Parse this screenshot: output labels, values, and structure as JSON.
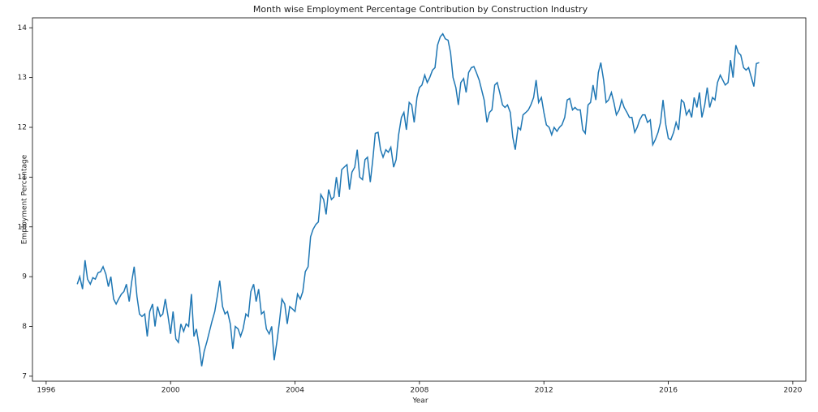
{
  "chart_data": {
    "type": "line",
    "title": "Month wise Employment Percentage Contribution by Construction Industry",
    "x_label": "Year",
    "y_label": "Employment Percentage",
    "color": "#1f77b4",
    "xlim": [
      1995.56,
      2020.42
    ],
    "ylim": [
      6.9,
      14.2
    ],
    "xticks": [
      1996,
      2000,
      2004,
      2008,
      2012,
      2016,
      2020
    ],
    "yticks": [
      7,
      8,
      9,
      10,
      11,
      12,
      13,
      14
    ],
    "x": [
      1997,
      1997.08,
      1997.17,
      1997.25,
      1997.33,
      1997.42,
      1997.5,
      1997.58,
      1997.67,
      1997.75,
      1997.83,
      1997.92,
      1998,
      1998.08,
      1998.17,
      1998.25,
      1998.33,
      1998.42,
      1998.5,
      1998.58,
      1998.67,
      1998.75,
      1998.83,
      1998.92,
      1999,
      1999.08,
      1999.17,
      1999.25,
      1999.33,
      1999.42,
      1999.5,
      1999.58,
      1999.67,
      1999.75,
      1999.83,
      1999.92,
      2000,
      2000.08,
      2000.17,
      2000.25,
      2000.33,
      2000.42,
      2000.5,
      2000.58,
      2000.67,
      2000.75,
      2000.83,
      2000.92,
      2001,
      2001.08,
      2001.17,
      2001.25,
      2001.33,
      2001.42,
      2001.5,
      2001.58,
      2001.67,
      2001.75,
      2001.83,
      2001.92,
      2002,
      2002.08,
      2002.17,
      2002.25,
      2002.33,
      2002.42,
      2002.5,
      2002.58,
      2002.67,
      2002.75,
      2002.83,
      2002.92,
      2003,
      2003.08,
      2003.17,
      2003.25,
      2003.33,
      2003.42,
      2003.5,
      2003.58,
      2003.67,
      2003.75,
      2003.83,
      2003.92,
      2004,
      2004.08,
      2004.17,
      2004.25,
      2004.33,
      2004.42,
      2004.5,
      2004.58,
      2004.67,
      2004.75,
      2004.83,
      2004.92,
      2005,
      2005.08,
      2005.17,
      2005.25,
      2005.33,
      2005.42,
      2005.5,
      2005.58,
      2005.67,
      2005.75,
      2005.83,
      2005.92,
      2006,
      2006.08,
      2006.17,
      2006.25,
      2006.33,
      2006.42,
      2006.5,
      2006.58,
      2006.67,
      2006.75,
      2006.83,
      2006.92,
      2007,
      2007.08,
      2007.17,
      2007.25,
      2007.33,
      2007.42,
      2007.5,
      2007.58,
      2007.67,
      2007.75,
      2007.83,
      2007.92,
      2008,
      2008.08,
      2008.17,
      2008.25,
      2008.33,
      2008.42,
      2008.5,
      2008.58,
      2008.67,
      2008.75,
      2008.83,
      2008.92,
      2009,
      2009.08,
      2009.17,
      2009.25,
      2009.33,
      2009.42,
      2009.5,
      2009.58,
      2009.67,
      2009.75,
      2009.83,
      2009.92,
      2010,
      2010.08,
      2010.17,
      2010.25,
      2010.33,
      2010.42,
      2010.5,
      2010.58,
      2010.67,
      2010.75,
      2010.83,
      2010.92,
      2011,
      2011.08,
      2011.17,
      2011.25,
      2011.33,
      2011.42,
      2011.5,
      2011.58,
      2011.67,
      2011.75,
      2011.83,
      2011.92,
      2012,
      2012.08,
      2012.17,
      2012.25,
      2012.33,
      2012.42,
      2012.5,
      2012.58,
      2012.67,
      2012.75,
      2012.83,
      2012.92,
      2013,
      2013.08,
      2013.17,
      2013.25,
      2013.33,
      2013.42,
      2013.5,
      2013.58,
      2013.67,
      2013.75,
      2013.83,
      2013.92,
      2014,
      2014.08,
      2014.17,
      2014.25,
      2014.33,
      2014.42,
      2014.5,
      2014.58,
      2014.67,
      2014.75,
      2014.83,
      2014.92,
      2015,
      2015.08,
      2015.17,
      2015.25,
      2015.33,
      2015.42,
      2015.5,
      2015.58,
      2015.67,
      2015.75,
      2015.83,
      2015.92,
      2016,
      2016.08,
      2016.17,
      2016.25,
      2016.33,
      2016.42,
      2016.5,
      2016.58,
      2016.67,
      2016.75,
      2016.83,
      2016.92,
      2017,
      2017.08,
      2017.17,
      2017.25,
      2017.33,
      2017.42,
      2017.5,
      2017.58,
      2017.67,
      2017.75,
      2017.83,
      2017.92,
      2018,
      2018.08,
      2018.17,
      2018.25,
      2018.33,
      2018.42,
      2018.5,
      2018.58,
      2018.67,
      2018.75,
      2018.83,
      2018.92
    ],
    "values": [
      8.85,
      9.0,
      8.75,
      9.33,
      8.95,
      8.85,
      8.98,
      8.95,
      9.08,
      9.1,
      9.2,
      9.05,
      8.8,
      9.0,
      8.55,
      8.45,
      8.55,
      8.65,
      8.7,
      8.85,
      8.5,
      8.9,
      9.2,
      8.6,
      8.25,
      8.2,
      8.25,
      7.8,
      8.3,
      8.45,
      8.0,
      8.4,
      8.2,
      8.25,
      8.55,
      8.2,
      7.85,
      8.3,
      7.75,
      7.68,
      8.05,
      7.9,
      8.05,
      8.0,
      8.65,
      7.8,
      7.95,
      7.6,
      7.2,
      7.5,
      7.7,
      7.9,
      8.1,
      8.3,
      8.6,
      8.92,
      8.4,
      8.25,
      8.3,
      8.05,
      7.55,
      8.0,
      7.95,
      7.8,
      7.95,
      8.25,
      8.2,
      8.7,
      8.85,
      8.5,
      8.75,
      8.25,
      8.3,
      7.95,
      7.85,
      8.0,
      7.32,
      7.7,
      8.1,
      8.55,
      8.45,
      8.05,
      8.4,
      8.35,
      8.3,
      8.65,
      8.55,
      8.7,
      9.1,
      9.2,
      9.8,
      9.95,
      10.05,
      10.1,
      10.65,
      10.55,
      10.25,
      10.75,
      10.55,
      10.6,
      11.0,
      10.6,
      11.15,
      11.2,
      11.25,
      10.75,
      11.1,
      11.2,
      11.55,
      11.0,
      10.95,
      11.35,
      11.4,
      10.9,
      11.35,
      11.88,
      11.9,
      11.55,
      11.4,
      11.55,
      11.5,
      11.6,
      11.2,
      11.35,
      11.85,
      12.2,
      12.3,
      11.95,
      12.5,
      12.45,
      12.1,
      12.6,
      12.8,
      12.85,
      13.05,
      12.9,
      13.0,
      13.15,
      13.2,
      13.65,
      13.82,
      13.88,
      13.78,
      13.75,
      13.5,
      13.0,
      12.8,
      12.45,
      12.9,
      12.98,
      12.7,
      13.1,
      13.2,
      13.22,
      13.1,
      12.95,
      12.75,
      12.55,
      12.1,
      12.3,
      12.35,
      12.85,
      12.9,
      12.7,
      12.45,
      12.4,
      12.45,
      12.3,
      11.8,
      11.55,
      12.0,
      11.95,
      12.25,
      12.3,
      12.35,
      12.45,
      12.6,
      12.95,
      12.5,
      12.6,
      12.3,
      12.05,
      12.0,
      11.85,
      12.0,
      11.92,
      12.0,
      12.05,
      12.2,
      12.55,
      12.58,
      12.35,
      12.4,
      12.35,
      12.35,
      11.95,
      11.88,
      12.45,
      12.5,
      12.85,
      12.55,
      13.1,
      13.3,
      12.95,
      12.5,
      12.55,
      12.7,
      12.5,
      12.25,
      12.35,
      12.55,
      12.4,
      12.3,
      12.2,
      12.2,
      11.9,
      12.0,
      12.15,
      12.25,
      12.25,
      12.1,
      12.15,
      11.65,
      11.75,
      11.9,
      12.1,
      12.55,
      12.05,
      11.78,
      11.75,
      11.9,
      12.1,
      11.95,
      12.55,
      12.5,
      12.25,
      12.35,
      12.2,
      12.6,
      12.4,
      12.7,
      12.2,
      12.45,
      12.8,
      12.4,
      12.6,
      12.55,
      12.9,
      13.05,
      12.95,
      12.85,
      12.9,
      13.35,
      13.0,
      13.65,
      13.5,
      13.45,
      13.2,
      13.15,
      13.2,
      13.0,
      12.82,
      13.28,
      13.3
    ]
  }
}
